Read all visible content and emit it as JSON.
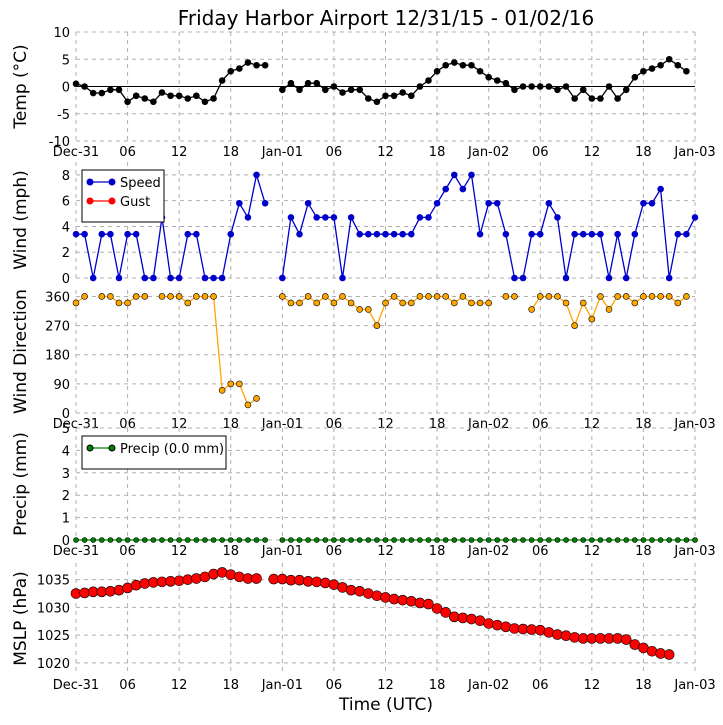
{
  "title": "Friday Harbor Airport 12/31/15 - 01/02/16",
  "xlabel": "Time (UTC)",
  "x_ticks": [
    "Dec-31",
    "06",
    "12",
    "18",
    "Jan-01",
    "06",
    "12",
    "18",
    "Jan-02",
    "06",
    "12",
    "18",
    "Jan-03"
  ],
  "colors": {
    "temp": "#000000",
    "speed": "#0000cc",
    "gust": "#ff0000",
    "direction": "#ffa500",
    "precip": "#008000",
    "mslp": "#ff0000",
    "grid": "#b0b0b0"
  },
  "chart_data": [
    {
      "type": "line",
      "ylabel": "Temp (°C)",
      "ylim": [
        -10,
        10
      ],
      "yticks": [
        10,
        5,
        0,
        -5,
        -10
      ],
      "zero_line": true,
      "x_ticks_shown": true,
      "series": [
        {
          "values": [
            0.5,
            0,
            -1.2,
            -1.2,
            -0.6,
            -0.6,
            -2.8,
            -1.7,
            -2.2,
            -2.8,
            -1.1,
            -1.7,
            -1.7,
            -2.2,
            -1.7,
            -2.8,
            -2.2,
            1.1,
            2.8,
            3.3,
            4.4,
            3.9,
            3.9,
            null,
            -0.6,
            0.6,
            -0.6,
            0.6,
            0.6,
            -0.6,
            0,
            -1.1,
            -0.6,
            -0.6,
            -2.2,
            -2.8,
            -1.7,
            -1.7,
            -1.1,
            -1.7,
            0,
            1.1,
            2.8,
            3.9,
            4.4,
            3.9,
            3.9,
            2.8,
            1.7,
            1.1,
            0.6,
            -0.6,
            0,
            0,
            0,
            0,
            -0.6,
            0,
            -2.2,
            -0.6,
            -2.2,
            -2.2,
            0,
            -2.2,
            -0.6,
            1.7,
            2.8,
            3.3,
            3.9,
            5,
            3.9,
            2.8
          ]
        }
      ]
    },
    {
      "type": "line",
      "ylabel": "Wind (mph)",
      "ylim": [
        0,
        9
      ],
      "yticks": [
        8,
        6,
        4,
        2,
        0
      ],
      "x_ticks_shown": false,
      "legend": "top-left",
      "series": [
        {
          "name": "Speed",
          "values": [
            3.4,
            3.4,
            0,
            3.4,
            3.4,
            0,
            3.4,
            3.4,
            0,
            0,
            4.7,
            0,
            0,
            3.4,
            3.4,
            0,
            0,
            0,
            3.4,
            5.8,
            4.7,
            8,
            5.8,
            null,
            0,
            4.7,
            3.4,
            5.8,
            4.7,
            4.7,
            4.7,
            0,
            4.7,
            3.4,
            3.4,
            3.4,
            3.4,
            3.4,
            3.4,
            3.4,
            4.7,
            4.7,
            5.8,
            6.9,
            8,
            6.9,
            8,
            3.4,
            5.8,
            5.8,
            3.4,
            0,
            0,
            3.4,
            3.4,
            5.8,
            4.7,
            0,
            3.4,
            3.4,
            3.4,
            3.4,
            0,
            3.4,
            0,
            3.4,
            5.8,
            5.8,
            6.9,
            0,
            3.4,
            3.4,
            4.7
          ]
        },
        {
          "name": "Gust",
          "values": []
        }
      ]
    },
    {
      "type": "line",
      "ylabel": "Wind Direction",
      "ylim": [
        0,
        380
      ],
      "yticks": [
        360,
        270,
        180,
        90,
        0
      ],
      "x_ticks_shown": true,
      "series": [
        {
          "values": [
            340,
            360,
            null,
            360,
            360,
            340,
            340,
            360,
            360,
            null,
            360,
            360,
            360,
            340,
            360,
            360,
            360,
            70,
            90,
            90,
            25,
            45,
            null,
            null,
            360,
            340,
            340,
            360,
            340,
            360,
            340,
            360,
            340,
            320,
            320,
            270,
            340,
            360,
            340,
            340,
            360,
            360,
            360,
            360,
            340,
            360,
            340,
            340,
            340,
            null,
            360,
            360,
            null,
            320,
            360,
            360,
            360,
            340,
            270,
            340,
            290,
            360,
            320,
            360,
            360,
            340,
            360,
            360,
            360,
            360,
            340,
            360
          ]
        }
      ]
    },
    {
      "type": "line",
      "ylabel": "Precip (mm)",
      "ylim": [
        0,
        5
      ],
      "yticks": [
        5,
        4,
        3,
        2,
        1,
        0
      ],
      "x_ticks_shown": true,
      "legend": "top-left",
      "series": [
        {
          "name": "Precip (0.0 mm)",
          "values": [
            0,
            0,
            0,
            0,
            0,
            0,
            0,
            0,
            0,
            0,
            0,
            0,
            0,
            0,
            0,
            0,
            0,
            0,
            0,
            0,
            0,
            0,
            0,
            null,
            0,
            0,
            0,
            0,
            0,
            0,
            0,
            0,
            0,
            0,
            0,
            0,
            0,
            0,
            0,
            0,
            0,
            0,
            0,
            0,
            0,
            0,
            0,
            0,
            0,
            0,
            0,
            0,
            0,
            0,
            0,
            0,
            0,
            0,
            0,
            0,
            0,
            0,
            0,
            0,
            0,
            0,
            0,
            0,
            0,
            0,
            0,
            0,
            0
          ]
        }
      ]
    },
    {
      "type": "scatter",
      "ylabel": "MSLP (hPa)",
      "ylim": [
        1018,
        1038
      ],
      "yticks": [
        1035,
        1030,
        1025,
        1020
      ],
      "x_ticks_shown": true,
      "series": [
        {
          "values": [
            1032.5,
            1032.6,
            1032.8,
            1032.8,
            1032.9,
            1033.1,
            1033.5,
            1034,
            1034.3,
            1034.5,
            1034.6,
            1034.7,
            1034.8,
            1035,
            1035.2,
            1035.5,
            1036,
            1036.3,
            1035.9,
            1035.5,
            1035.2,
            1035.2,
            null,
            1035.1,
            1035.1,
            1034.9,
            1034.9,
            1034.7,
            1034.6,
            1034.4,
            1034.1,
            1033.6,
            1033.1,
            1032.9,
            1032.5,
            1032.1,
            1031.8,
            1031.5,
            1031.3,
            1031.1,
            1030.8,
            1030.6,
            1029.8,
            1029.1,
            1028.3,
            1028.1,
            1027.9,
            1027.6,
            1027.1,
            1026.8,
            1026.5,
            1026.2,
            1026.1,
            1026,
            1025.9,
            1025.5,
            1025.1,
            1024.9,
            1024.6,
            1024.4,
            1024.4,
            1024.4,
            1024.4,
            1024.4,
            1024.2,
            1023.3,
            1022.7,
            1022.1,
            1021.7,
            1021.5
          ]
        }
      ]
    }
  ]
}
